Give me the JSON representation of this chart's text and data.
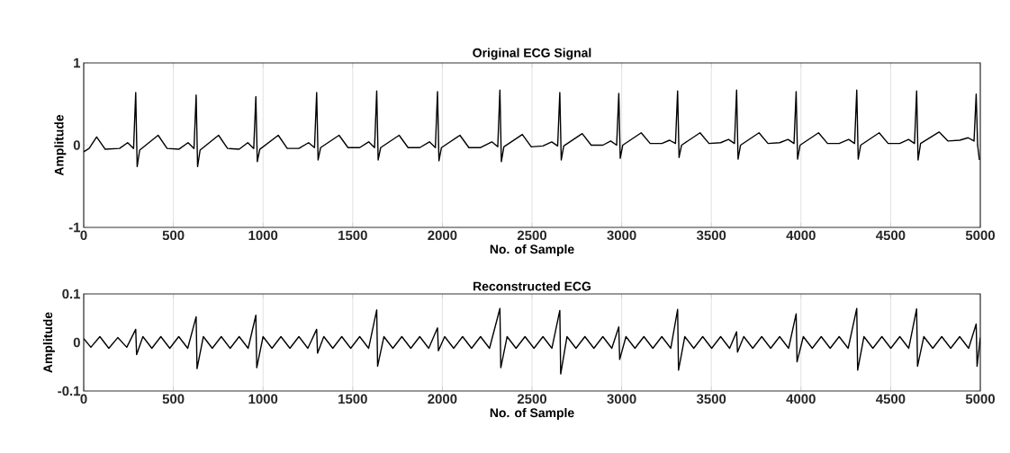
{
  "chart_data": [
    {
      "type": "line",
      "title": "Original ECG Signal",
      "xlabel": "No. of Sample",
      "ylabel": "Amplitude",
      "xlim": [
        0,
        5000
      ],
      "ylim": [
        -1,
        1
      ],
      "xticks": [
        0,
        500,
        1000,
        1500,
        2000,
        2500,
        3000,
        3500,
        4000,
        4500,
        5000
      ],
      "yticks": [
        -1,
        0,
        1
      ],
      "grid": "x",
      "series": [
        {
          "color": "#000000",
          "x": [
            0,
            30,
            72,
            120,
            200,
            245,
            278,
            290,
            298,
            312,
            415,
            465,
            530,
            582,
            615,
            627,
            635,
            649,
            752,
            802,
            867,
            915,
            948,
            960,
            968,
            982,
            1085,
            1135,
            1200,
            1254,
            1287,
            1299,
            1307,
            1321,
            1424,
            1474,
            1539,
            1589,
            1622,
            1634,
            1642,
            1656,
            1759,
            1809,
            1874,
            1928,
            1961,
            1973,
            1981,
            1995,
            2098,
            2148,
            2213,
            2276,
            2309,
            2321,
            2329,
            2343,
            2446,
            2496,
            2561,
            2610,
            2643,
            2655,
            2663,
            2677,
            2780,
            2830,
            2895,
            2939,
            2972,
            2984,
            2992,
            3006,
            3109,
            3159,
            3224,
            3267,
            3300,
            3312,
            3320,
            3334,
            3437,
            3487,
            3552,
            3596,
            3629,
            3641,
            3649,
            3663,
            3766,
            3816,
            3881,
            3928,
            3961,
            3973,
            3981,
            3995,
            4098,
            4148,
            4213,
            4266,
            4299,
            4311,
            4319,
            4333,
            4436,
            4486,
            4551,
            4600,
            4633,
            4645,
            4653,
            4667,
            4770,
            4820,
            4885,
            4932,
            4965,
            4977,
            4985,
            4995
          ],
          "values": [
            -0.08,
            -0.04,
            0.1,
            -0.05,
            -0.04,
            0.03,
            -0.04,
            0.64,
            -0.26,
            -0.06,
            0.12,
            -0.04,
            -0.05,
            0.03,
            -0.04,
            0.61,
            -0.26,
            -0.06,
            0.12,
            -0.04,
            -0.05,
            0.03,
            -0.04,
            0.59,
            -0.2,
            -0.05,
            0.12,
            -0.04,
            -0.04,
            0.03,
            -0.03,
            0.64,
            -0.18,
            -0.03,
            0.12,
            -0.03,
            -0.03,
            0.04,
            -0.03,
            0.66,
            -0.18,
            -0.03,
            0.12,
            -0.03,
            -0.03,
            0.04,
            -0.03,
            0.65,
            -0.19,
            -0.03,
            0.12,
            -0.03,
            -0.03,
            0.04,
            -0.02,
            0.67,
            -0.2,
            -0.02,
            0.13,
            -0.02,
            -0.01,
            0.04,
            -0.01,
            0.64,
            -0.18,
            -0.01,
            0.14,
            0.0,
            0.0,
            0.05,
            0.0,
            0.63,
            -0.16,
            0.0,
            0.15,
            0.02,
            0.02,
            0.06,
            0.02,
            0.66,
            -0.15,
            0.0,
            0.15,
            0.02,
            0.03,
            0.07,
            0.02,
            0.67,
            -0.17,
            0.0,
            0.15,
            0.02,
            0.03,
            0.07,
            0.02,
            0.65,
            -0.17,
            0.0,
            0.15,
            0.02,
            0.02,
            0.07,
            0.02,
            0.67,
            -0.17,
            0.0,
            0.15,
            0.02,
            0.02,
            0.07,
            0.02,
            0.66,
            -0.18,
            0.02,
            0.16,
            0.05,
            0.06,
            0.09,
            0.05,
            0.62,
            0.0,
            -0.18
          ]
        }
      ]
    },
    {
      "type": "line",
      "title": "Reconstructed ECG",
      "xlabel": "No. of Sample",
      "ylabel": "Amplitude",
      "xlim": [
        0,
        5000
      ],
      "ylim": [
        -0.1,
        0.1
      ],
      "xticks": [
        0,
        500,
        1000,
        1500,
        2000,
        2500,
        3000,
        3500,
        4000,
        4500,
        5000
      ],
      "yticks": [
        -0.1,
        0,
        0.1
      ],
      "grid": "x",
      "series": [
        {
          "color": "#000000",
          "x": [
            0,
            40,
            90,
            140,
            190,
            240,
            290,
            295,
            330,
            380,
            430,
            480,
            530,
            580,
            627,
            632,
            667,
            717,
            767,
            817,
            867,
            917,
            960,
            965,
            1000,
            1050,
            1100,
            1150,
            1200,
            1250,
            1299,
            1304,
            1339,
            1389,
            1439,
            1489,
            1539,
            1589,
            1634,
            1639,
            1674,
            1724,
            1774,
            1824,
            1874,
            1924,
            1973,
            1978,
            2013,
            2063,
            2113,
            2163,
            2213,
            2263,
            2321,
            2326,
            2361,
            2411,
            2461,
            2511,
            2561,
            2611,
            2655,
            2660,
            2695,
            2745,
            2795,
            2845,
            2895,
            2945,
            2984,
            2989,
            3024,
            3074,
            3124,
            3174,
            3224,
            3274,
            3312,
            3317,
            3352,
            3402,
            3452,
            3502,
            3552,
            3602,
            3641,
            3646,
            3681,
            3731,
            3781,
            3831,
            3881,
            3931,
            3973,
            3978,
            4013,
            4063,
            4113,
            4163,
            4213,
            4263,
            4311,
            4316,
            4351,
            4401,
            4451,
            4501,
            4551,
            4601,
            4645,
            4650,
            4685,
            4735,
            4785,
            4835,
            4885,
            4935,
            4977,
            4982,
            5000
          ],
          "values": [
            0.008,
            -0.01,
            0.012,
            -0.012,
            0.01,
            -0.01,
            0.027,
            -0.025,
            0.012,
            -0.012,
            0.012,
            -0.012,
            0.012,
            -0.012,
            0.053,
            -0.054,
            0.012,
            -0.012,
            0.012,
            -0.012,
            0.012,
            -0.012,
            0.056,
            -0.052,
            0.012,
            -0.012,
            0.012,
            -0.012,
            0.012,
            -0.012,
            0.027,
            -0.022,
            0.012,
            -0.012,
            0.012,
            -0.012,
            0.012,
            -0.012,
            0.067,
            -0.049,
            0.012,
            -0.012,
            0.012,
            -0.012,
            0.012,
            -0.012,
            0.03,
            -0.017,
            0.012,
            -0.012,
            0.012,
            -0.012,
            0.012,
            -0.012,
            0.07,
            -0.052,
            0.012,
            -0.012,
            0.012,
            -0.012,
            0.012,
            -0.012,
            0.066,
            -0.065,
            0.012,
            -0.012,
            0.012,
            -0.012,
            0.012,
            -0.012,
            0.032,
            -0.035,
            0.012,
            -0.012,
            0.012,
            -0.012,
            0.012,
            -0.012,
            0.068,
            -0.057,
            0.012,
            -0.012,
            0.012,
            -0.012,
            0.012,
            -0.012,
            0.022,
            -0.02,
            0.012,
            -0.012,
            0.012,
            -0.012,
            0.012,
            -0.012,
            0.059,
            -0.04,
            0.012,
            -0.012,
            0.012,
            -0.012,
            0.012,
            -0.012,
            0.07,
            -0.057,
            0.012,
            -0.012,
            0.012,
            -0.012,
            0.012,
            -0.012,
            0.069,
            -0.049,
            0.012,
            -0.012,
            0.012,
            -0.012,
            0.012,
            -0.012,
            0.038,
            -0.049,
            0.01
          ]
        }
      ]
    }
  ]
}
